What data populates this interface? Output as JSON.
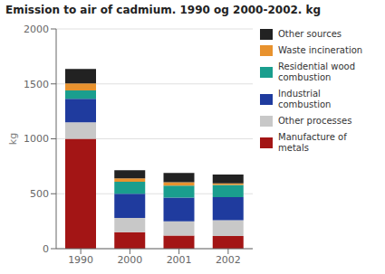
{
  "chart_data": {
    "type": "bar",
    "title": "Emission to air of cadmium. 1990 og 2000-2002. kg",
    "ylabel": "kg",
    "categories": [
      "1990",
      "2000",
      "2001",
      "2002"
    ],
    "series": [
      {
        "name": "Manufacture of\nmetals",
        "color": "#a31515",
        "values": [
          1000,
          150,
          120,
          115
        ]
      },
      {
        "name": "Other processes",
        "color": "#c8c8c8",
        "values": [
          150,
          130,
          130,
          145
        ]
      },
      {
        "name": "Industrial\ncombustion",
        "color": "#1f3b9e",
        "values": [
          215,
          220,
          215,
          210
        ]
      },
      {
        "name": "Residential wood\ncombustion",
        "color": "#1a9e8e",
        "values": [
          75,
          110,
          110,
          110
        ]
      },
      {
        "name": "Waste incineration",
        "color": "#e8922e",
        "values": [
          65,
          30,
          30,
          15
        ]
      },
      {
        "name": "Other sources",
        "color": "#222222",
        "values": [
          130,
          75,
          85,
          80
        ]
      }
    ],
    "ylim": [
      0,
      2000
    ],
    "yticks": [
      0,
      500,
      1000,
      1500,
      2000
    ],
    "stacked": true,
    "grid": true,
    "legend": "right"
  }
}
